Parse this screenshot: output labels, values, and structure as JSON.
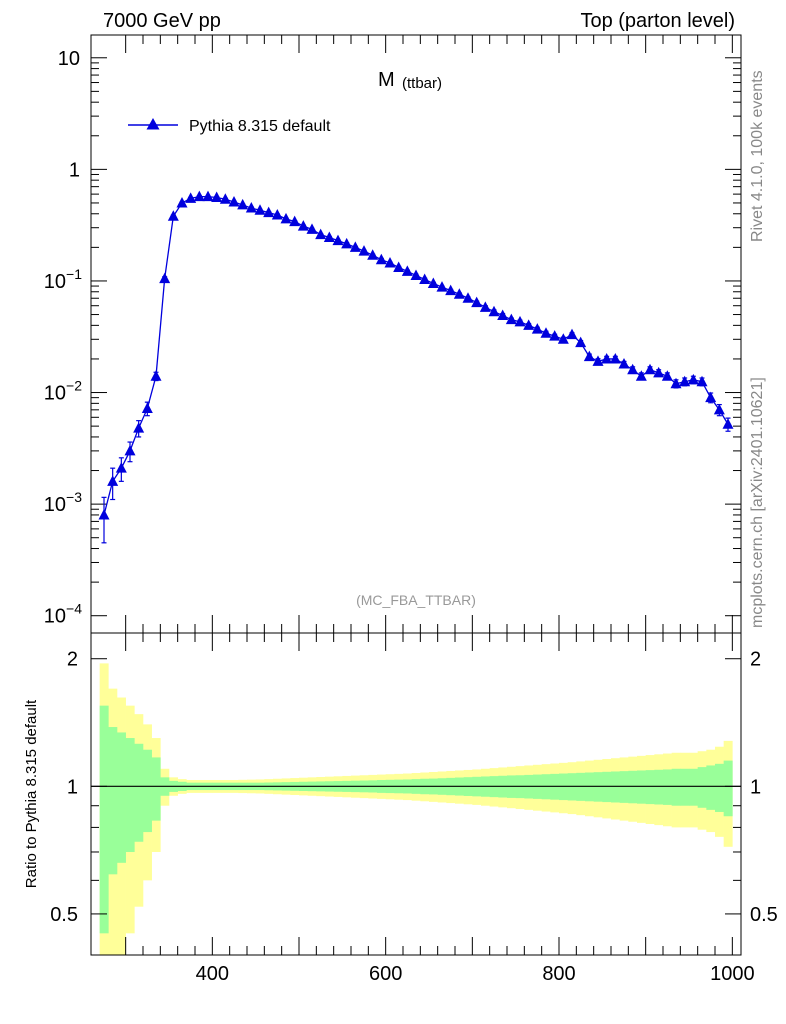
{
  "header": {
    "left": "7000 GeV pp",
    "right": "Top (parton level)"
  },
  "side_labels": {
    "right_top": "Rivet 4.1.0,  100k events",
    "right_bottom": "mcplots.cern.ch [arXiv:2401.10621]"
  },
  "chart_data": {
    "type": "line",
    "title": "M",
    "title_sub": "(ttbar)",
    "analysis_tag": "(MC_FBA_TTBAR)",
    "xlabel": "",
    "ylabel": "",
    "ratio_ylabel": "Ratio to Pythia 8.315 default",
    "xlim": [
      260,
      1010
    ],
    "ylim": [
      7e-05,
      16
    ],
    "yscale": "log",
    "ratio_ylim": [
      0.4,
      2.3
    ],
    "x_ticks": [
      "400",
      "600",
      "800",
      "1000"
    ],
    "y_ticks": [
      {
        "base": "10",
        "exp": "−4"
      },
      {
        "base": "10",
        "exp": "−3"
      },
      {
        "base": "10",
        "exp": "−2"
      },
      {
        "base": "10",
        "exp": "−1"
      },
      {
        "base": "1",
        "exp": ""
      },
      {
        "base": "10",
        "exp": ""
      }
    ],
    "ratio_ticks": [
      "0.5",
      "1",
      "2"
    ],
    "legend": [
      "Pythia 8.315 default"
    ],
    "series": [
      {
        "name": "Pythia 8.315 default",
        "color": "#0000dd",
        "x": [
          275,
          285,
          295,
          305,
          315,
          325,
          335,
          345,
          355,
          365,
          375,
          385,
          395,
          405,
          415,
          425,
          435,
          445,
          455,
          465,
          475,
          485,
          495,
          505,
          515,
          525,
          535,
          545,
          555,
          565,
          575,
          585,
          595,
          605,
          615,
          625,
          635,
          645,
          655,
          665,
          675,
          685,
          695,
          705,
          715,
          725,
          735,
          745,
          755,
          765,
          775,
          785,
          795,
          805,
          815,
          825,
          835,
          845,
          855,
          865,
          875,
          885,
          895,
          905,
          915,
          925,
          935,
          945,
          955,
          965,
          975,
          985,
          995
        ],
        "y": [
          0.0008,
          0.0016,
          0.0021,
          0.003,
          0.0048,
          0.0072,
          0.014,
          0.105,
          0.38,
          0.5,
          0.55,
          0.57,
          0.57,
          0.56,
          0.54,
          0.51,
          0.48,
          0.45,
          0.43,
          0.41,
          0.39,
          0.36,
          0.34,
          0.31,
          0.29,
          0.26,
          0.245,
          0.23,
          0.215,
          0.2,
          0.185,
          0.17,
          0.155,
          0.145,
          0.132,
          0.122,
          0.112,
          0.103,
          0.095,
          0.088,
          0.082,
          0.076,
          0.07,
          0.064,
          0.058,
          0.053,
          0.049,
          0.045,
          0.043,
          0.04,
          0.037,
          0.034,
          0.032,
          0.03,
          0.033,
          0.028,
          0.021,
          0.019,
          0.02,
          0.02,
          0.018,
          0.016,
          0.014,
          0.016,
          0.015,
          0.014,
          0.012,
          0.0125,
          0.013,
          0.0125,
          0.009,
          0.007,
          0.0052
        ],
        "yerr": [
          0.00035,
          0.0005,
          0.0005,
          0.0006,
          0.0008,
          0.001,
          0.0012,
          0.004,
          0.01,
          0.01,
          0.01,
          0.01,
          0.01,
          0.01,
          0.01,
          0.01,
          0.009,
          0.009,
          0.008,
          0.008,
          0.008,
          0.007,
          0.007,
          0.006,
          0.006,
          0.005,
          0.005,
          0.005,
          0.005,
          0.004,
          0.004,
          0.004,
          0.004,
          0.003,
          0.003,
          0.003,
          0.003,
          0.003,
          0.002,
          0.002,
          0.002,
          0.002,
          0.002,
          0.002,
          0.002,
          0.002,
          0.002,
          0.0015,
          0.0015,
          0.0015,
          0.0015,
          0.0014,
          0.0013,
          0.0013,
          0.0013,
          0.0012,
          0.0011,
          0.0011,
          0.0011,
          0.0011,
          0.001,
          0.001,
          0.001,
          0.001,
          0.001,
          0.001,
          0.001,
          0.001,
          0.001,
          0.001,
          0.0009,
          0.0008,
          0.0007
        ]
      }
    ],
    "ratio": {
      "reference": 1,
      "bins": [
        270,
        280,
        290,
        300,
        310,
        320,
        330,
        340,
        350,
        360,
        370,
        380,
        390,
        400,
        410,
        420,
        430,
        440,
        450,
        460,
        470,
        480,
        490,
        500,
        510,
        520,
        530,
        540,
        550,
        560,
        570,
        580,
        590,
        600,
        610,
        620,
        630,
        640,
        650,
        660,
        670,
        680,
        690,
        700,
        710,
        720,
        730,
        740,
        750,
        760,
        770,
        780,
        790,
        800,
        810,
        820,
        830,
        840,
        850,
        860,
        870,
        880,
        890,
        900,
        910,
        920,
        930,
        940,
        950,
        960,
        970,
        980,
        990,
        1000
      ],
      "stat_band": [
        0.55,
        0.38,
        0.34,
        0.3,
        0.26,
        0.22,
        0.17,
        0.05,
        0.03,
        0.025,
        0.02,
        0.02,
        0.02,
        0.02,
        0.02,
        0.02,
        0.02,
        0.02,
        0.02,
        0.021,
        0.022,
        0.023,
        0.024,
        0.025,
        0.026,
        0.027,
        0.028,
        0.029,
        0.03,
        0.031,
        0.032,
        0.033,
        0.035,
        0.036,
        0.037,
        0.038,
        0.04,
        0.042,
        0.043,
        0.045,
        0.047,
        0.049,
        0.051,
        0.053,
        0.055,
        0.057,
        0.059,
        0.061,
        0.062,
        0.064,
        0.066,
        0.068,
        0.07,
        0.072,
        0.074,
        0.076,
        0.078,
        0.08,
        0.082,
        0.084,
        0.086,
        0.088,
        0.09,
        0.092,
        0.094,
        0.096,
        0.1,
        0.1,
        0.1,
        0.11,
        0.12,
        0.13,
        0.15
      ],
      "total_band": [
        0.95,
        0.7,
        0.62,
        0.55,
        0.48,
        0.4,
        0.3,
        0.1,
        0.05,
        0.04,
        0.035,
        0.035,
        0.035,
        0.035,
        0.035,
        0.035,
        0.036,
        0.037,
        0.038,
        0.04,
        0.042,
        0.044,
        0.046,
        0.048,
        0.05,
        0.052,
        0.054,
        0.056,
        0.058,
        0.06,
        0.062,
        0.064,
        0.066,
        0.068,
        0.07,
        0.072,
        0.075,
        0.078,
        0.081,
        0.084,
        0.087,
        0.09,
        0.093,
        0.096,
        0.1,
        0.104,
        0.108,
        0.112,
        0.116,
        0.12,
        0.124,
        0.128,
        0.132,
        0.136,
        0.14,
        0.145,
        0.15,
        0.155,
        0.16,
        0.165,
        0.17,
        0.175,
        0.18,
        0.185,
        0.19,
        0.195,
        0.2,
        0.2,
        0.2,
        0.21,
        0.22,
        0.24,
        0.28
      ],
      "colors": {
        "stat": "#99ff99",
        "total": "#ffff99",
        "line": "#000000"
      }
    }
  }
}
